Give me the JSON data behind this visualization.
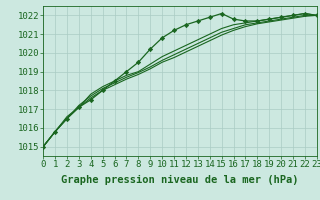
{
  "bg_color": "#cce8e0",
  "grid_color": "#aaccC4",
  "line_color": "#1a6620",
  "marker_color": "#1a6620",
  "title": "Graphe pression niveau de la mer (hPa)",
  "xlim": [
    0,
    23
  ],
  "ylim": [
    1014.5,
    1022.5
  ],
  "yticks": [
    1015,
    1016,
    1017,
    1018,
    1019,
    1020,
    1021,
    1022
  ],
  "xticks": [
    0,
    1,
    2,
    3,
    4,
    5,
    6,
    7,
    8,
    9,
    10,
    11,
    12,
    13,
    14,
    15,
    16,
    17,
    18,
    19,
    20,
    21,
    22,
    23
  ],
  "series": [
    [
      1015.0,
      1015.8,
      1016.5,
      1017.1,
      1017.5,
      1018.0,
      1018.5,
      1019.0,
      1019.5,
      1020.2,
      1020.8,
      1021.2,
      1021.5,
      1021.7,
      1021.9,
      1022.1,
      1021.8,
      1021.7,
      1021.7,
      1021.8,
      1021.9,
      1022.0,
      1022.1,
      1022.0
    ],
    [
      1015.0,
      1015.8,
      1016.6,
      1017.1,
      1017.8,
      1018.2,
      1018.5,
      1018.8,
      1019.0,
      1019.4,
      1019.8,
      1020.1,
      1020.4,
      1020.7,
      1021.0,
      1021.3,
      1021.5,
      1021.6,
      1021.7,
      1021.8,
      1021.9,
      1022.0,
      1022.1,
      1022.0
    ],
    [
      1015.0,
      1015.8,
      1016.5,
      1017.2,
      1017.7,
      1018.1,
      1018.4,
      1018.7,
      1018.95,
      1019.25,
      1019.6,
      1019.9,
      1020.2,
      1020.5,
      1020.8,
      1021.1,
      1021.3,
      1021.5,
      1021.6,
      1021.7,
      1021.8,
      1021.9,
      1022.0,
      1022.0
    ],
    [
      1015.0,
      1015.8,
      1016.5,
      1017.1,
      1017.6,
      1018.0,
      1018.3,
      1018.6,
      1018.85,
      1019.15,
      1019.5,
      1019.75,
      1020.05,
      1020.35,
      1020.65,
      1020.95,
      1021.2,
      1021.4,
      1021.55,
      1021.65,
      1021.75,
      1021.85,
      1021.95,
      1022.0
    ]
  ],
  "title_fontsize": 7.5,
  "tick_fontsize": 6.5
}
